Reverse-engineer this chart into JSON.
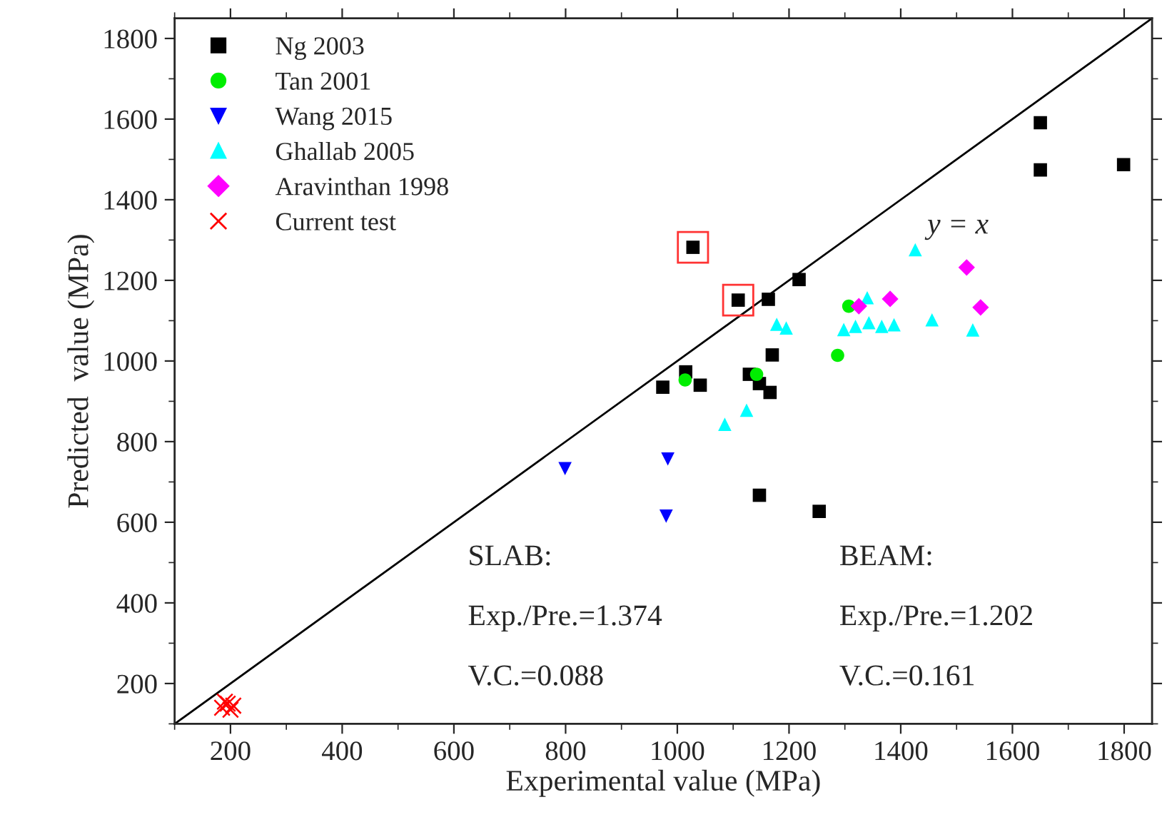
{
  "chart_data": {
    "type": "scatter",
    "xlabel": "Experimental value (MPa)",
    "ylabel": "Predicted  value (MPa)",
    "xlim": [
      100,
      1850
    ],
    "ylim": [
      100,
      1850
    ],
    "xticks": [
      200,
      400,
      600,
      800,
      1000,
      1200,
      1400,
      1600,
      1800
    ],
    "yticks": [
      200,
      400,
      600,
      800,
      1000,
      1200,
      1400,
      1600,
      1800
    ],
    "grid": false,
    "legend": "top left",
    "series": [
      {
        "name": "Ng 2003",
        "color": "#000000",
        "marker": "square",
        "x": [
          1650,
          1650,
          1799,
          1028,
          1109,
          1163,
          1218,
          974,
          1015,
          1041,
          1170,
          1129,
          1147,
          1166,
          1147,
          1254
        ],
        "values": [
          1591,
          1474,
          1487,
          1282,
          1151,
          1153,
          1202,
          935,
          973,
          940,
          1015,
          967,
          944,
          922,
          667,
          627
        ]
      },
      {
        "name": "Tan 2001",
        "color": "#00ee00",
        "marker": "circle",
        "x": [
          1014,
          1142,
          1287,
          1307
        ],
        "values": [
          953,
          967,
          1014,
          1136
        ]
      },
      {
        "name": "Wang 2015",
        "color": "#0000ff",
        "marker": "triangle_down",
        "x": [
          799,
          983,
          980
        ],
        "values": [
          733,
          757,
          615
        ]
      },
      {
        "name": "Ghallab 2005",
        "color": "#00ffff",
        "marker": "triangle",
        "x": [
          1426,
          1340,
          1178,
          1195,
          1085,
          1124,
          1298,
          1319,
          1343,
          1366,
          1388,
          1456,
          1529
        ],
        "values": [
          1276,
          1157,
          1091,
          1082,
          843,
          878,
          1078,
          1086,
          1095,
          1086,
          1090,
          1102,
          1077
        ]
      },
      {
        "name": "Aravinthan 1998",
        "color": "#ff00ff",
        "marker": "diamond",
        "x": [
          1325,
          1381,
          1518,
          1543
        ],
        "values": [
          1136,
          1154,
          1232,
          1133
        ]
      },
      {
        "name": "Current test",
        "color": "#ff0000",
        "marker": "cross",
        "x": [
          185,
          195,
          200,
          190,
          205
        ],
        "values": [
          140,
          150,
          135,
          155,
          145
        ]
      },
      {
        "type": "line",
        "color": "#000000",
        "x": [
          100,
          1850
        ],
        "values": [
          100,
          1850
        ]
      }
    ],
    "annotations": [
      "y = x",
      "SLAB:",
      "Exp./Pre.=1.374",
      "V.C.=0.088",
      "BEAM:",
      "Exp./Pre.=1.202",
      "V.C.=0.161"
    ]
  }
}
